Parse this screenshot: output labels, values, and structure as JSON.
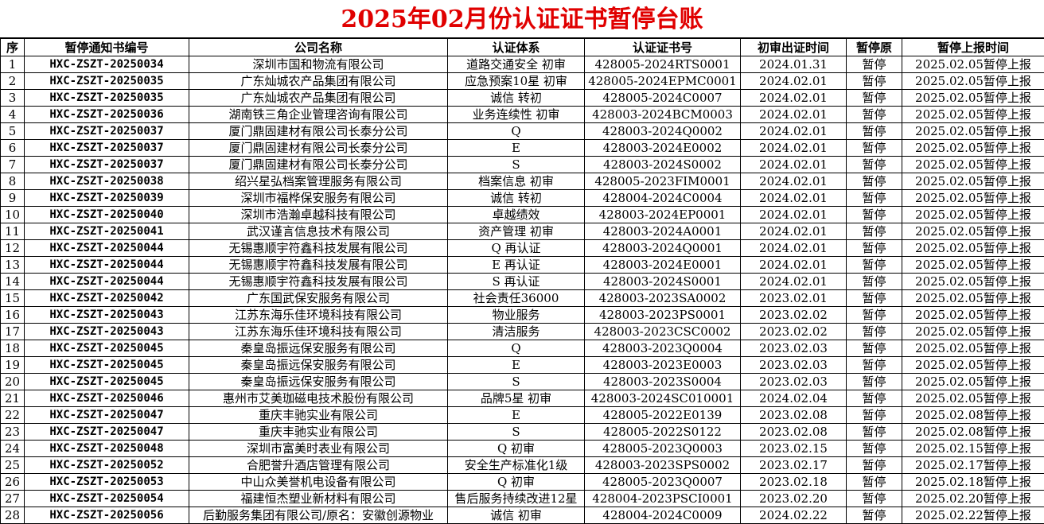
{
  "title": "2025年02月份认证证书暂停台账",
  "table": {
    "header": [
      "序",
      "暂停通知书编号",
      "公司名称",
      "认证体系",
      "认证证书号",
      "初审出证时间",
      "暂停原",
      "暂停上报时间"
    ],
    "rows": [
      [
        1,
        "HXC-ZSZT-20250034",
        "深圳市国和物流有限公司",
        "道路交通安全 初审",
        "428005-2024RTS0001",
        "2024.01.31",
        "暂停",
        "2025.02.05暂停上报"
      ],
      [
        2,
        "HXC-ZSZT-20250035",
        "广东灿城农产品集团有限公司",
        "应急预案10星 初审",
        "428005-2024EPMC0001",
        "2024.02.01",
        "暂停",
        "2025.02.05暂停上报"
      ],
      [
        3,
        "HXC-ZSZT-20250035",
        "广东灿城农产品集团有限公司",
        "诚信 转初",
        "428005-2024C0007",
        "2024.02.01",
        "暂停",
        "2025.02.05暂停上报"
      ],
      [
        4,
        "HXC-ZSZT-20250036",
        "湖南铁三角企业管理咨询有限公司",
        "业务连续性 初审",
        "428003-2024BCM0003",
        "2024.02.01",
        "暂停",
        "2025.02.05暂停上报"
      ],
      [
        5,
        "HXC-ZSZT-20250037",
        "厦门鼎固建材有限公司长泰分公司",
        "Q",
        "428003-2024Q0002",
        "2024.02.01",
        "暂停",
        "2025.02.05暂停上报"
      ],
      [
        6,
        "HXC-ZSZT-20250037",
        "厦门鼎固建材有限公司长泰分公司",
        "E",
        "428003-2024E0002",
        "2024.02.01",
        "暂停",
        "2025.02.05暂停上报"
      ],
      [
        7,
        "HXC-ZSZT-20250037",
        "厦门鼎固建材有限公司长泰分公司",
        "S",
        "428003-2024S0002",
        "2024.02.01",
        "暂停",
        "2025.02.05暂停上报"
      ],
      [
        8,
        "HXC-ZSZT-20250038",
        "绍兴星弘档案管理服务有限公司",
        "档案信息 初审",
        "428005-2023FIM0001",
        "2024.02.01",
        "暂停",
        "2025.02.05暂停上报"
      ],
      [
        9,
        "HXC-ZSZT-20250039",
        "深圳市福桦保安服务有限公司",
        "诚信 转初",
        "428004-2024C0004",
        "2024.02.01",
        "暂停",
        "2025.02.05暂停上报"
      ],
      [
        10,
        "HXC-ZSZT-20250040",
        "深圳市浩瀚卓越科技有限公司",
        "卓越绩效",
        "428003-2024EP0001",
        "2024.02.01",
        "暂停",
        "2025.02.05暂停上报"
      ],
      [
        11,
        "HXC-ZSZT-20250041",
        "武汉谨言信息技术有限公司",
        "资产管理 初审",
        "428003-2024A0001",
        "2024.02.01",
        "暂停",
        "2025.02.05暂停上报"
      ],
      [
        12,
        "HXC-ZSZT-20250044",
        "无锡惠顺宇符鑫科技发展有限公司",
        "Q 再认证",
        "428003-2024Q0001",
        "2024.02.01",
        "暂停",
        "2025.02.05暂停上报"
      ],
      [
        13,
        "HXC-ZSZT-20250044",
        "无锡惠顺宇符鑫科技发展有限公司",
        "E 再认证",
        "428003-2024E0001",
        "2024.02.01",
        "暂停",
        "2025.02.05暂停上报"
      ],
      [
        14,
        "HXC-ZSZT-20250044",
        "无锡惠顺宇符鑫科技发展有限公司",
        "S 再认证",
        "428003-2024S0001",
        "2024.02.01",
        "暂停",
        "2025.02.05暂停上报"
      ],
      [
        15,
        "HXC-ZSZT-20250042",
        "广东国武保安服务有限公司",
        "社会责任36000",
        "428003-2023SA0002",
        "2023.02.01",
        "暂停",
        "2025.02.05暂停上报"
      ],
      [
        16,
        "HXC-ZSZT-20250043",
        "江苏东海乐佳环境科技有限公司",
        "物业服务",
        "428003-2023PS0001",
        "2023.02.02",
        "暂停",
        "2025.02.05暂停上报"
      ],
      [
        17,
        "HXC-ZSZT-20250043",
        "江苏东海乐佳环境科技有限公司",
        "清洁服务",
        "428003-2023CSC0002",
        "2023.02.02",
        "暂停",
        "2025.02.05暂停上报"
      ],
      [
        18,
        "HXC-ZSZT-20250045",
        "秦皇岛振远保安服务有限公司",
        "Q",
        "428003-2023Q0004",
        "2023.02.03",
        "暂停",
        "2025.02.05暂停上报"
      ],
      [
        19,
        "HXC-ZSZT-20250045",
        "秦皇岛振远保安服务有限公司",
        "E",
        "428003-2023E0003",
        "2023.02.03",
        "暂停",
        "2025.02.05暂停上报"
      ],
      [
        20,
        "HXC-ZSZT-20250045",
        "秦皇岛振远保安服务有限公司",
        "S",
        "428003-2023S0004",
        "2023.02.03",
        "暂停",
        "2025.02.05暂停上报"
      ],
      [
        21,
        "HXC-ZSZT-20250046",
        "惠州市艾美珈磁电技术股份有限公司",
        "品牌5星 初审",
        "428003-2024SC010001",
        "2024.02.04",
        "暂停",
        "2025.02.05暂停上报"
      ],
      [
        22,
        "HXC-ZSZT-20250047",
        "重庆丰驰实业有限公司",
        "E",
        "428005-2022E0139",
        "2023.02.08",
        "暂停",
        "2025.02.08暂停上报"
      ],
      [
        23,
        "HXC-ZSZT-20250047",
        "重庆丰驰实业有限公司",
        "S",
        "428005-2022S0122",
        "2023.02.08",
        "暂停",
        "2025.02.08暂停上报"
      ],
      [
        24,
        "HXC-ZSZT-20250048",
        "深圳市富美时表业有限公司",
        "Q 初审",
        "428005-2023Q0003",
        "2023.02.15",
        "暂停",
        "2025.02.15暂停上报"
      ],
      [
        25,
        "HXC-ZSZT-20250052",
        "合肥誉升酒店管理有限公司",
        "安全生产标准化1级",
        "428003-2023SPS0002",
        "2023.02.17",
        "暂停",
        "2025.02.17暂停上报"
      ],
      [
        26,
        "HXC-ZSZT-20250053",
        "中山众美誉机电设备有限公司",
        "Q 初审",
        "428005-2023Q0007",
        "2023.02.18",
        "暂停",
        "2025.02.18暂停上报"
      ],
      [
        27,
        "HXC-ZSZT-20250054",
        "福建恒杰塑业新材料有限公司",
        "售后服务持续改进12星",
        "428004-2023PSCI0001",
        "2023.02.20",
        "暂停",
        "2025.02.20暂停上报"
      ],
      [
        28,
        "HXC-ZSZT-20250056",
        "后勤服务集团有限公司/原名：安徽创源物业",
        "诚信 初审",
        "428004-2024C0009",
        "2024.02.22",
        "暂停",
        "2025.02.22暂停上报"
      ]
    ]
  }
}
